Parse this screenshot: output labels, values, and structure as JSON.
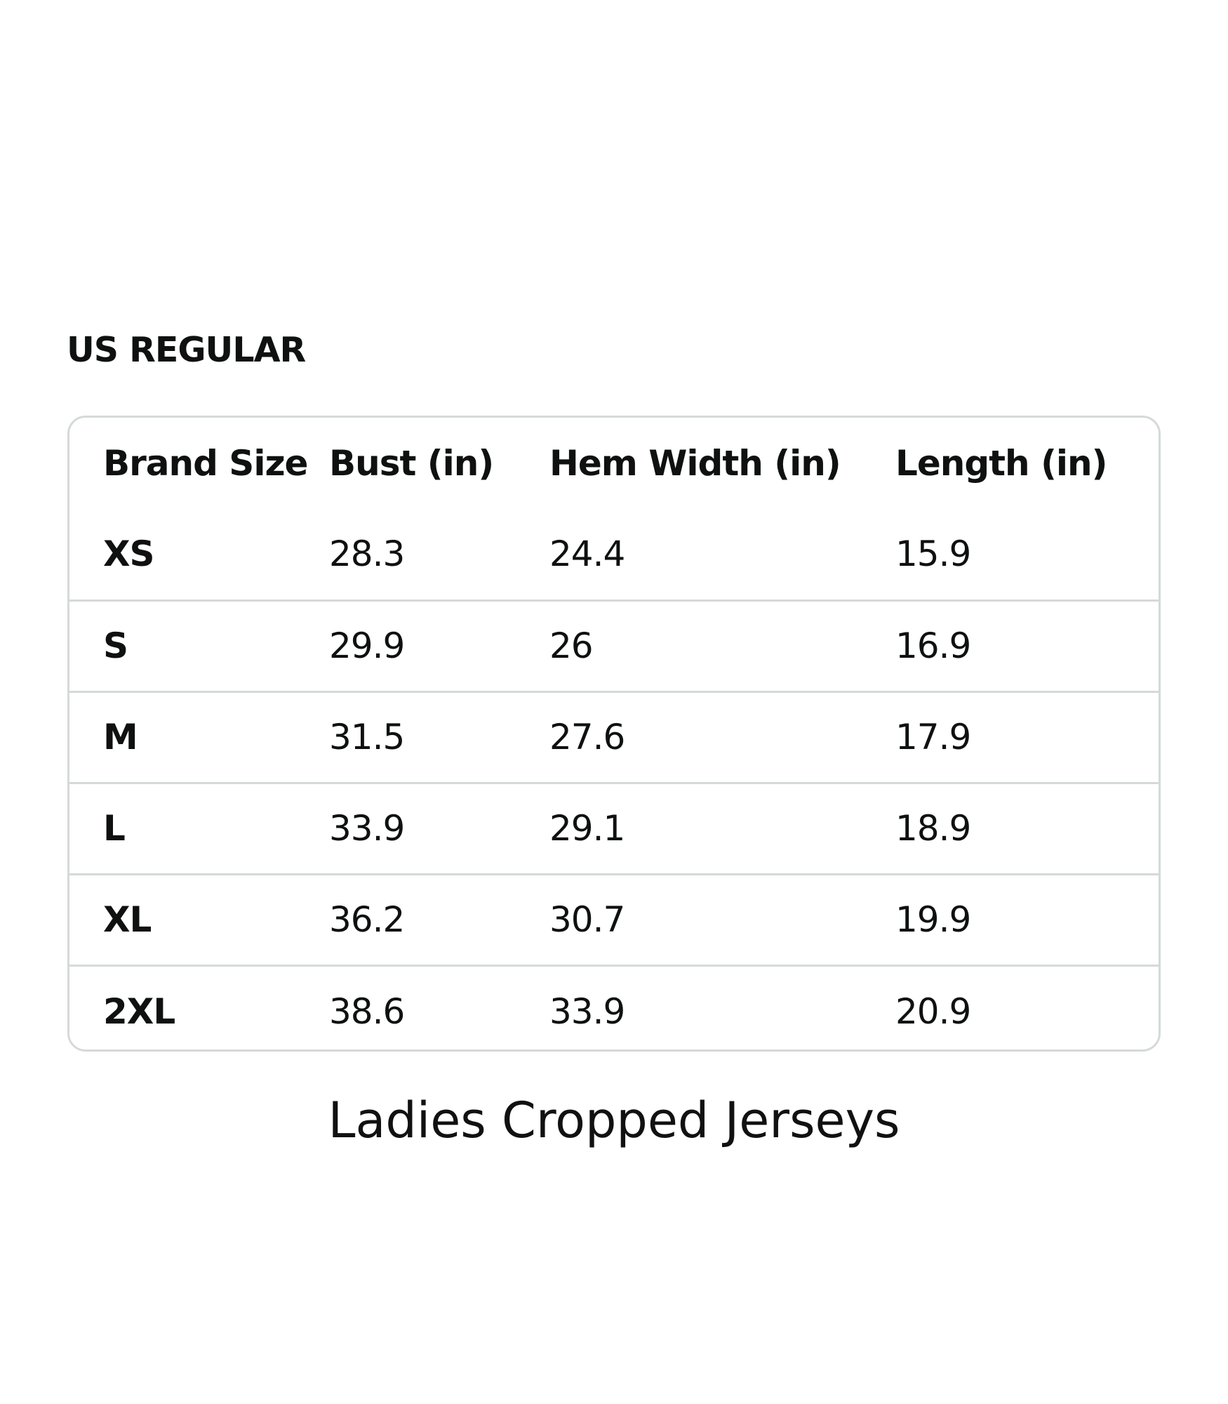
{
  "section_title": "US REGULAR",
  "table": {
    "headers": [
      "Brand Size",
      "Bust (in)",
      "Hem Width (in)",
      "Length (in)"
    ],
    "rows": [
      [
        "XS",
        "28.3",
        "24.4",
        "15.9"
      ],
      [
        "S",
        "29.9",
        "26",
        "16.9"
      ],
      [
        "M",
        "31.5",
        "27.6",
        "17.9"
      ],
      [
        "L",
        "33.9",
        "29.1",
        "18.9"
      ],
      [
        "XL",
        "36.2",
        "30.7",
        "19.9"
      ],
      [
        "2XL",
        "38.6",
        "33.9",
        "20.9"
      ]
    ]
  },
  "caption": "Ladies Cropped Jerseys",
  "colors": {
    "text": "#0f1111",
    "border": "#d5d9d9",
    "background": "#ffffff"
  }
}
